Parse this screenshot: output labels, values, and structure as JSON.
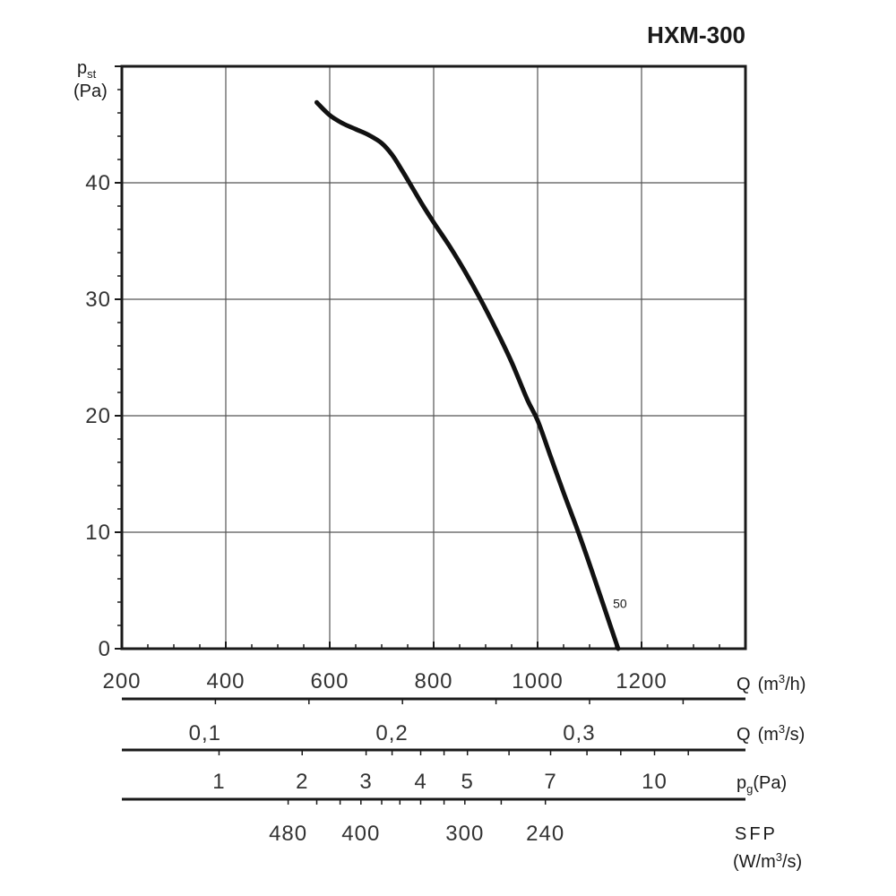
{
  "chart_data": {
    "type": "line",
    "title": "HXM-300",
    "ylabel": {
      "main": "p",
      "sub": "st",
      "unit": "(Pa)"
    },
    "xlabel": {
      "main": "Q",
      "unit": "(m",
      "sup": "3",
      "unit_end": "/h)"
    },
    "xlim": [
      200,
      1400
    ],
    "ylim": [
      0,
      50
    ],
    "x_ticks": [
      200,
      400,
      600,
      800,
      1000,
      1200
    ],
    "x_tick_labels": [
      "200",
      "400",
      "600",
      "800",
      "1000",
      "1200"
    ],
    "y_ticks": [
      0,
      10,
      20,
      30,
      40
    ],
    "y_tick_labels": [
      "0",
      "10",
      "20",
      "30",
      "40"
    ],
    "grid": true,
    "series": [
      {
        "name": "50",
        "x": [
          575,
          600,
          625,
          650,
          675,
          700,
          720,
          740,
          760,
          780,
          800,
          830,
          860,
          890,
          920,
          950,
          980,
          1000,
          1025,
          1050,
          1080,
          1105,
          1130,
          1155
        ],
        "values": [
          46.9,
          45.8,
          45.1,
          44.6,
          44.1,
          43.4,
          42.4,
          41.0,
          39.5,
          38.0,
          36.6,
          34.6,
          32.4,
          30.0,
          27.4,
          24.6,
          21.4,
          19.6,
          16.5,
          13.4,
          9.8,
          6.6,
          3.3,
          0.0
        ]
      }
    ],
    "secondary_axes": [
      {
        "label": "Q",
        "unit": "(m",
        "sup": "3",
        "unit_end": "/s)",
        "ticks": [
          {
            "text": "0,1",
            "q": 360
          },
          {
            "text": "0,2",
            "q": 720
          },
          {
            "text": "0,3",
            "q": 1080
          }
        ],
        "minor_q": [
          380,
          560,
          740,
          920,
          1100,
          1280
        ]
      },
      {
        "label": "p",
        "sub": "g",
        "unit": "(Pa)",
        "ticks": [
          {
            "text": "1",
            "q": 387
          },
          {
            "text": "2",
            "q": 547
          },
          {
            "text": "3",
            "q": 670
          },
          {
            "text": "4",
            "q": 775
          },
          {
            "text": "5",
            "q": 865
          },
          {
            "text": "7",
            "q": 1025
          },
          {
            "text": "10",
            "q": 1225
          }
        ],
        "minor_q": [
          387,
          547,
          670,
          720,
          775,
          820,
          865,
          945,
          1025,
          1095,
          1160,
          1225,
          1290
        ]
      },
      {
        "label": "SFP",
        "unit": "(W/m",
        "sup": "3",
        "unit_end": "/s)",
        "ticks": [
          {
            "text": "480",
            "q": 520
          },
          {
            "text": "400",
            "q": 660
          },
          {
            "text": "300",
            "q": 860
          },
          {
            "text": "240",
            "q": 1015
          }
        ],
        "minor_q": [
          520,
          575,
          620,
          660,
          700,
          735,
          775,
          820,
          860,
          930,
          1015
        ]
      }
    ]
  }
}
